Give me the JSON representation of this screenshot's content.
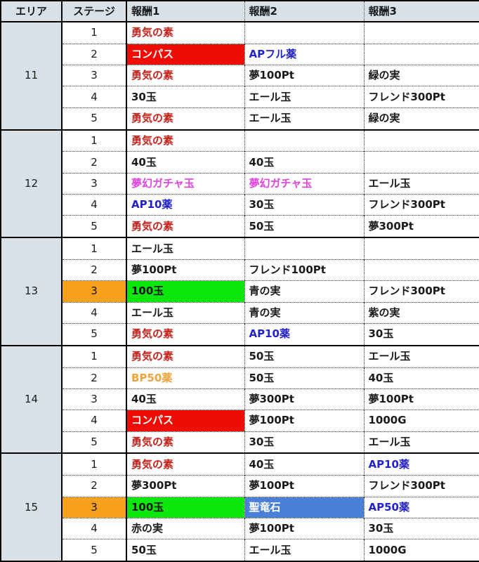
{
  "colors": {
    "header_bg": "#d8e1e7",
    "border": "#000000",
    "text": "#1a1a1a",
    "red_text": "#c3241d",
    "blue_text": "#2222cc",
    "magenta_text": "#dd44dd",
    "orange_text": "#efa33c",
    "red_bg": "#ee0c05",
    "green_bg": "#0ce80c",
    "blue_bg": "#4a80d8",
    "orange_bg": "#f7a01b"
  },
  "table": {
    "headers": [
      "エリア",
      "ステージ",
      "報酬1",
      "報酬2",
      "報酬3"
    ],
    "areas": [
      {
        "area": "11",
        "stages": [
          {
            "stage": "1",
            "r1": {
              "text": "勇気の素",
              "style": "red-text"
            },
            "r2": {
              "text": ""
            },
            "r3": {
              "text": ""
            }
          },
          {
            "stage": "2",
            "r1": {
              "text": "コンパス",
              "style": "red-bg"
            },
            "r2": {
              "text": "APフル薬",
              "style": "blue-text"
            },
            "r3": {
              "text": ""
            }
          },
          {
            "stage": "3",
            "r1": {
              "text": "勇気の素",
              "style": "red-text"
            },
            "r2": {
              "text": "夢100Pt"
            },
            "r3": {
              "text": "緑の実"
            }
          },
          {
            "stage": "4",
            "r1": {
              "text": "30玉"
            },
            "r2": {
              "text": "エール玉"
            },
            "r3": {
              "text": "フレンド300Pt"
            }
          },
          {
            "stage": "5",
            "r1": {
              "text": "勇気の素",
              "style": "red-text"
            },
            "r2": {
              "text": "エール玉"
            },
            "r3": {
              "text": "緑の実"
            }
          }
        ]
      },
      {
        "area": "12",
        "stages": [
          {
            "stage": "1",
            "r1": {
              "text": "勇気の素",
              "style": "red-text"
            },
            "r2": {
              "text": ""
            },
            "r3": {
              "text": ""
            }
          },
          {
            "stage": "2",
            "r1": {
              "text": "40玉"
            },
            "r2": {
              "text": "40玉"
            },
            "r3": {
              "text": ""
            }
          },
          {
            "stage": "3",
            "r1": {
              "text": "夢幻ガチャ玉",
              "style": "magenta-text"
            },
            "r2": {
              "text": "夢幻ガチャ玉",
              "style": "magenta-text"
            },
            "r3": {
              "text": "エール玉"
            }
          },
          {
            "stage": "4",
            "r1": {
              "text": "AP10薬",
              "style": "blue-text"
            },
            "r2": {
              "text": "30玉"
            },
            "r3": {
              "text": "フレンド300Pt"
            }
          },
          {
            "stage": "5",
            "r1": {
              "text": "勇気の素",
              "style": "red-text"
            },
            "r2": {
              "text": "50玉"
            },
            "r3": {
              "text": "夢300Pt"
            }
          }
        ]
      },
      {
        "area": "13",
        "stages": [
          {
            "stage": "1",
            "r1": {
              "text": "エール玉"
            },
            "r2": {
              "text": ""
            },
            "r3": {
              "text": ""
            }
          },
          {
            "stage": "2",
            "r1": {
              "text": "夢100Pt"
            },
            "r2": {
              "text": "フレンド100Pt"
            },
            "r3": {
              "text": ""
            }
          },
          {
            "stage": "3",
            "stage_style": "orange-bg",
            "r1": {
              "text": "100玉",
              "style": "green-bg"
            },
            "r2": {
              "text": "青の実"
            },
            "r3": {
              "text": "フレンド300Pt"
            }
          },
          {
            "stage": "4",
            "r1": {
              "text": "エール玉"
            },
            "r2": {
              "text": "青の実"
            },
            "r3": {
              "text": "紫の実"
            }
          },
          {
            "stage": "5",
            "r1": {
              "text": "勇気の素",
              "style": "red-text"
            },
            "r2": {
              "text": "AP10薬",
              "style": "blue-text"
            },
            "r3": {
              "text": "30玉"
            }
          }
        ]
      },
      {
        "area": "14",
        "stages": [
          {
            "stage": "1",
            "r1": {
              "text": "勇気の素",
              "style": "red-text"
            },
            "r2": {
              "text": "50玉"
            },
            "r3": {
              "text": "エール玉"
            }
          },
          {
            "stage": "2",
            "r1": {
              "text": "BP50薬",
              "style": "orange-text"
            },
            "r2": {
              "text": "50玉"
            },
            "r3": {
              "text": "40玉"
            }
          },
          {
            "stage": "3",
            "r1": {
              "text": "40玉"
            },
            "r2": {
              "text": "夢300Pt"
            },
            "r3": {
              "text": "夢100Pt"
            }
          },
          {
            "stage": "4",
            "r1": {
              "text": "コンパス",
              "style": "red-bg"
            },
            "r2": {
              "text": "夢100Pt"
            },
            "r3": {
              "text": "1000G"
            }
          },
          {
            "stage": "5",
            "r1": {
              "text": "勇気の素",
              "style": "red-text"
            },
            "r2": {
              "text": "30玉"
            },
            "r3": {
              "text": "エール玉"
            }
          }
        ]
      },
      {
        "area": "15",
        "stages": [
          {
            "stage": "1",
            "r1": {
              "text": "勇気の素",
              "style": "red-text"
            },
            "r2": {
              "text": "40玉"
            },
            "r3": {
              "text": "AP10薬",
              "style": "blue-text"
            }
          },
          {
            "stage": "2",
            "r1": {
              "text": "夢300Pt"
            },
            "r2": {
              "text": "夢100Pt"
            },
            "r3": {
              "text": "フレンド300Pt"
            }
          },
          {
            "stage": "3",
            "stage_style": "orange-bg",
            "r1": {
              "text": "100玉",
              "style": "green-bg"
            },
            "r2": {
              "text": "聖竜石",
              "style": "blue-bg"
            },
            "r3": {
              "text": "AP50薬",
              "style": "blue-text"
            }
          },
          {
            "stage": "4",
            "r1": {
              "text": "赤の実"
            },
            "r2": {
              "text": "夢100Pt"
            },
            "r3": {
              "text": "30玉"
            }
          },
          {
            "stage": "5",
            "r1": {
              "text": "50玉"
            },
            "r2": {
              "text": "エール玉"
            },
            "r3": {
              "text": "1000G"
            }
          }
        ]
      }
    ]
  }
}
